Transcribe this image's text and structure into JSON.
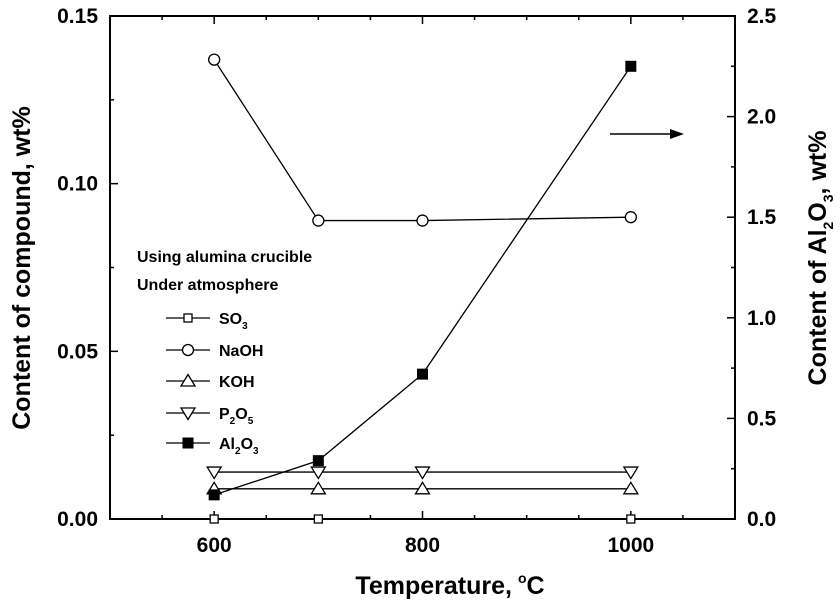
{
  "chart_data": {
    "type": "line",
    "x": [
      600,
      700,
      800,
      1000
    ],
    "xlabel": "Temperature,",
    "xlabel_unit": "C",
    "xlabel_degree": "o",
    "ylabel": "Content of compound, wt%",
    "y2label_parts": [
      "Content of Al",
      "2",
      "O",
      "3",
      ", wt%"
    ],
    "xlim": [
      500,
      1100
    ],
    "xticks": [
      600,
      800,
      1000
    ],
    "xtick_labels": [
      "600",
      "800",
      "1000"
    ],
    "ylim": [
      0,
      0.15
    ],
    "yticks": [
      0,
      0.05,
      0.1,
      0.15
    ],
    "ytick_labels": [
      "0.00",
      "0.05",
      "0.10",
      "0.15"
    ],
    "y2lim": [
      0,
      2.5
    ],
    "y2ticks": [
      0,
      0.5,
      1.0,
      1.5,
      2.0,
      2.5
    ],
    "y2tick_labels": [
      "0.0",
      "0.5",
      "1.0",
      "1.5",
      "2.0",
      "2.5"
    ],
    "legend_title": [
      "Using alumina crucible",
      "Under atmosphere"
    ],
    "legend_position": "center-left",
    "series": [
      {
        "name": "SO3",
        "label_parts": [
          "SO",
          "3"
        ],
        "axis": "left",
        "marker": "square-open",
        "values": [
          0.0,
          0.0,
          null,
          0.0
        ]
      },
      {
        "name": "NaOH",
        "label_parts": [
          "NaOH"
        ],
        "axis": "left",
        "marker": "circle-open",
        "values": [
          0.137,
          0.089,
          0.089,
          0.09
        ]
      },
      {
        "name": "KOH",
        "label_parts": [
          "KOH"
        ],
        "axis": "left",
        "marker": "triangle-up-open",
        "values": [
          0.009,
          0.009,
          0.009,
          0.009
        ]
      },
      {
        "name": "P2O5",
        "label_parts": [
          "P",
          "2",
          "O",
          "5"
        ],
        "axis": "left",
        "marker": "triangle-down-open",
        "values": [
          0.014,
          0.014,
          0.014,
          0.014
        ]
      },
      {
        "name": "Al2O3",
        "label_parts": [
          "Al",
          "2",
          "O",
          "3"
        ],
        "axis": "right",
        "marker": "square-filled",
        "values": [
          0.12,
          0.29,
          0.72,
          2.25
        ]
      }
    ],
    "annotation": "arrow pointing right (Al2O3 uses right axis)",
    "grid": false,
    "colors": {
      "line": "#000000",
      "background": "#ffffff"
    }
  }
}
